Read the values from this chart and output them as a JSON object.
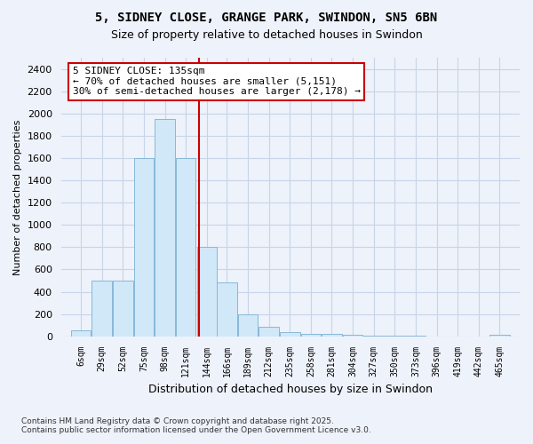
{
  "title_line1": "5, SIDNEY CLOSE, GRANGE PARK, SWINDON, SN5 6BN",
  "title_line2": "Size of property relative to detached houses in Swindon",
  "xlabel": "Distribution of detached houses by size in Swindon",
  "ylabel": "Number of detached properties",
  "bar_labels": [
    "6sqm",
    "29sqm",
    "52sqm",
    "75sqm",
    "98sqm",
    "121sqm",
    "144sqm",
    "166sqm",
    "189sqm",
    "212sqm",
    "235sqm",
    "258sqm",
    "281sqm",
    "304sqm",
    "327sqm",
    "350sqm",
    "373sqm",
    "396sqm",
    "419sqm",
    "442sqm",
    "465sqm"
  ],
  "bar_values": [
    50,
    500,
    500,
    1600,
    1950,
    1600,
    800,
    480,
    200,
    85,
    40,
    25,
    20,
    10,
    6,
    4,
    2,
    1,
    0,
    0,
    15
  ],
  "bar_color": "#d0e8f8",
  "bar_edgecolor": "#88b8d8",
  "grid_color": "#c8d4e8",
  "background_color": "#eef2fa",
  "vline_x_index": 5,
  "vline_color": "#cc0000",
  "annotation_text": "5 SIDNEY CLOSE: 135sqm\n← 70% of detached houses are smaller (5,151)\n30% of semi-detached houses are larger (2,178) →",
  "annotation_box_facecolor": "#ffffff",
  "annotation_box_edgecolor": "#cc0000",
  "ylim": [
    0,
    2500
  ],
  "yticks": [
    0,
    200,
    400,
    600,
    800,
    1000,
    1200,
    1400,
    1600,
    1800,
    2000,
    2200,
    2400
  ],
  "footer_line1": "Contains HM Land Registry data © Crown copyright and database right 2025.",
  "footer_line2": "Contains public sector information licensed under the Open Government Licence v3.0.",
  "bin_centers": [
    6,
    29,
    52,
    75,
    98,
    121,
    144,
    166,
    189,
    212,
    235,
    258,
    281,
    304,
    327,
    350,
    373,
    396,
    419,
    442,
    465
  ],
  "bin_width": 22
}
